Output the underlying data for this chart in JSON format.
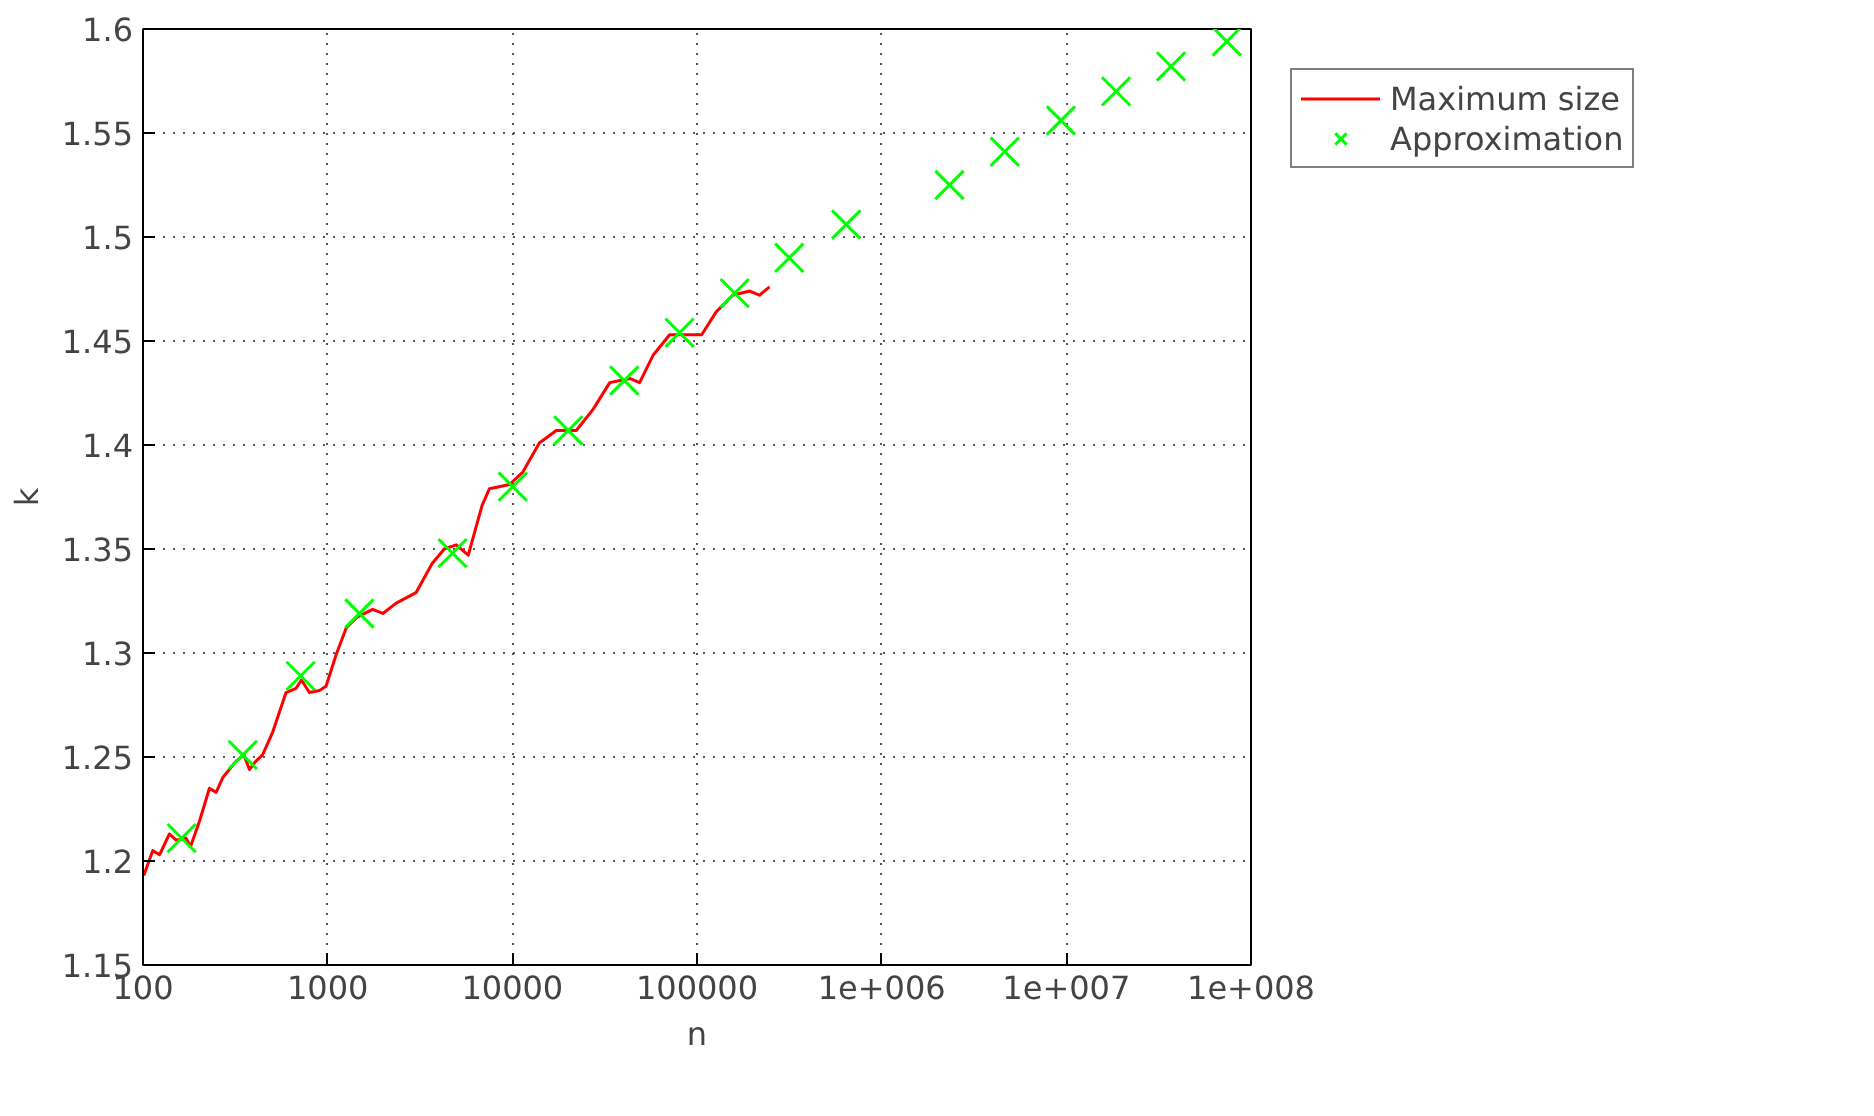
{
  "chart_data": {
    "type": "line",
    "xlabel": "n",
    "ylabel": "k",
    "log": "x",
    "grid": true,
    "legend": "top right",
    "xlim": [
      100,
      100000000
    ],
    "ylim": [
      1.15,
      1.6
    ],
    "xticks": [
      100,
      1000,
      10000,
      100000,
      {
        "value": 1000000,
        "label": "1e+006"
      },
      {
        "value": 10000000,
        "label": "1e+007"
      },
      {
        "value": 100000000,
        "label": "1e+008"
      }
    ],
    "yticks": [
      1.15,
      1.2,
      1.25,
      1.3,
      1.35,
      1.4,
      1.45,
      1.5,
      1.55,
      1.6
    ],
    "series": [
      {
        "name": "Maximum size",
        "color": "#ff0000",
        "marker": "none",
        "line_style": "solid",
        "x": [
          101,
          113,
          123,
          139,
          151,
          171,
          181,
          202,
          229,
          249,
          270,
          319,
          352,
          377,
          409,
          444,
          504,
          595,
          674,
          721,
          796,
          903,
          980,
          1110,
          1260,
          1430,
          1750,
          1990,
          2350,
          3010,
          3680,
          4280,
          4970,
          5770,
          6860,
          7520,
          9660,
          11400,
          14000,
          17300,
          22200,
          27300,
          33700,
          43200,
          48900,
          57700,
          71100,
          91200,
          106000,
          127000,
          156000,
          193000,
          218000,
          247000
        ],
        "values": [
          1.193,
          1.205,
          1.203,
          1.213,
          1.21,
          1.211,
          1.207,
          1.219,
          1.235,
          1.233,
          1.24,
          1.248,
          1.251,
          1.244,
          1.248,
          1.251,
          1.262,
          1.281,
          1.283,
          1.287,
          1.281,
          1.282,
          1.284,
          1.299,
          1.312,
          1.317,
          1.321,
          1.319,
          1.324,
          1.329,
          1.343,
          1.35,
          1.352,
          1.347,
          1.371,
          1.379,
          1.381,
          1.387,
          1.401,
          1.407,
          1.407,
          1.417,
          1.43,
          1.432,
          1.43,
          1.443,
          1.453,
          1.453,
          1.453,
          1.464,
          1.472,
          1.474,
          1.472,
          1.476
        ]
      },
      {
        "name": "Approximation",
        "type": "scatter",
        "color": "#00ff00",
        "marker": "cross",
        "x": [
          162,
          347,
          714,
          1486,
          4745,
          10050,
          20100,
          40400,
          80500,
          160000,
          316000,
          643000,
          2330000,
          4640000,
          9350000,
          18600000,
          36900000,
          74000000
        ],
        "values": [
          1.211,
          1.251,
          1.289,
          1.319,
          1.348,
          1.38,
          1.407,
          1.431,
          1.454,
          1.473,
          1.49,
          1.506,
          1.525,
          1.541,
          1.556,
          1.57,
          1.582,
          1.594
        ]
      }
    ]
  }
}
